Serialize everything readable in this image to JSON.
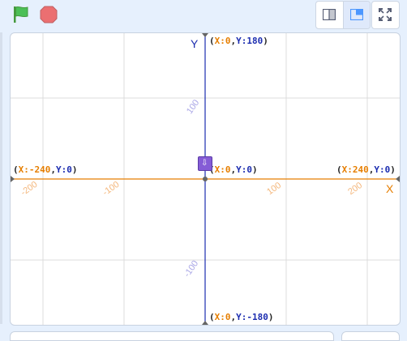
{
  "toolbar": {
    "green_flag_icon": "green-flag-icon",
    "stop_icon": "stop-icon",
    "small_stage_icon": "small-stage-icon",
    "normal_stage_icon": "normal-stage-icon",
    "fullscreen_icon": "fullscreen-icon"
  },
  "stage": {
    "axis_x_label": "X",
    "axis_y_label": "Y",
    "coords": {
      "top": {
        "x": "0",
        "y": "180"
      },
      "bottom": {
        "x": "0",
        "y": "-180"
      },
      "left": {
        "x": "-240",
        "y": "0"
      },
      "right": {
        "x": "240",
        "y": "0"
      },
      "center": {
        "x": "0",
        "y": "0"
      }
    },
    "x_ticks": [
      "-200",
      "-100",
      "100",
      "200"
    ],
    "y_ticks": [
      "100",
      "-100"
    ],
    "sprite_glyph": "⇩"
  },
  "colors": {
    "x_axis": "#e67e00",
    "y_axis": "#1c2db0",
    "grid": "#d9d9d9",
    "flag": "#4cbf56",
    "stop": "#ec5959",
    "sprite": "#855cd6"
  }
}
